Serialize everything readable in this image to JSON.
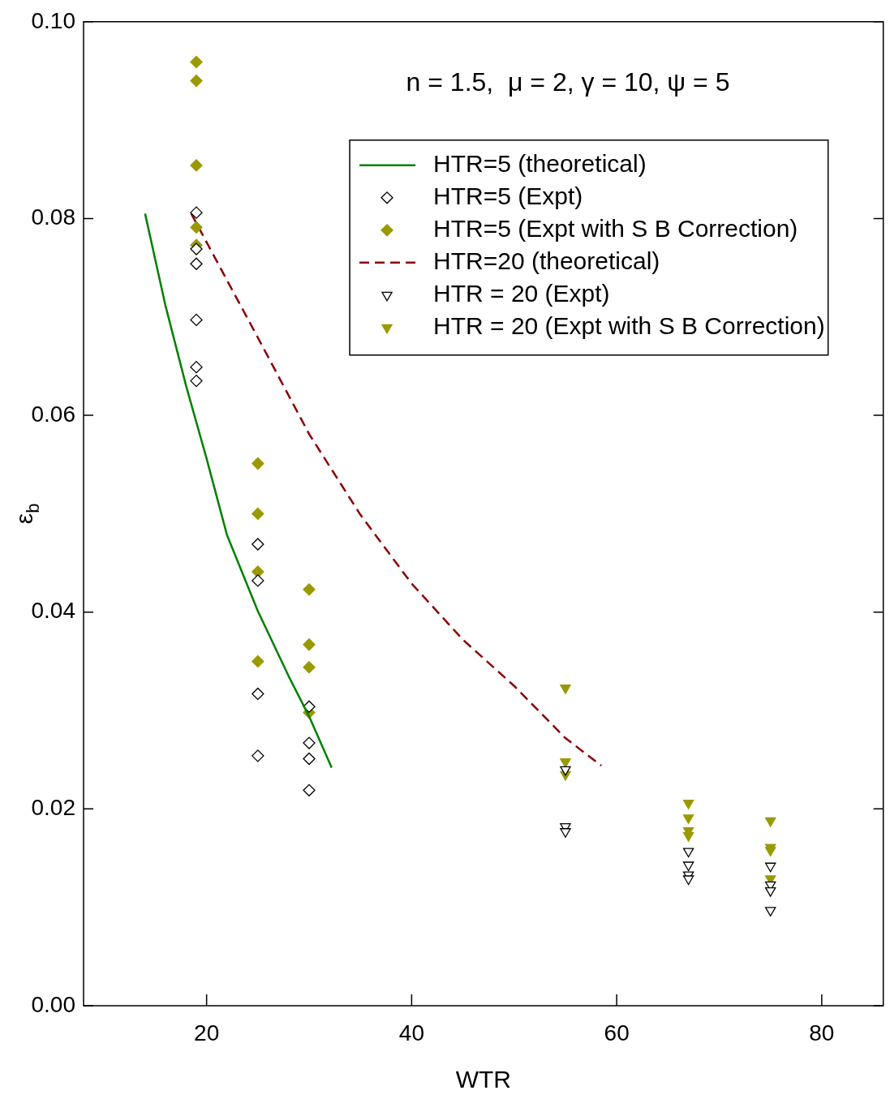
{
  "chart_data": {
    "type": "scatter",
    "xlabel": "WTR",
    "ylabel": "ε$_{b}$",
    "annotations": [
      "n = 1.5,  μ = 2, γ = 10, ψ = 5"
    ],
    "xlim": [
      8,
      86
    ],
    "xticks": [
      20,
      40,
      60,
      80
    ],
    "ylim": [
      0,
      0.1
    ],
    "yticks": [
      {
        "value": 0,
        "label": "0.00"
      },
      {
        "value": 0.02,
        "label": "0.02"
      },
      {
        "value": 0.04,
        "label": "0.04"
      },
      {
        "value": 0.06,
        "label": "0.06"
      },
      {
        "value": 0.08,
        "label": "0.08"
      },
      {
        "value": 0.1,
        "label": "0.10"
      }
    ],
    "grid": false,
    "legend": "top right",
    "series": [
      {
        "name": "HTR=5 (theoretical)",
        "type": "line",
        "color": "#008000",
        "line_style": "solid",
        "marker": "none",
        "x": [
          14,
          16,
          18,
          20,
          22,
          25,
          28,
          30,
          32.2
        ],
        "values": [
          0.0805,
          0.0711,
          0.063,
          0.0556,
          0.0478,
          0.0401,
          0.0335,
          0.0294,
          0.0242
        ]
      },
      {
        "name": "HTR=5 (Expt)",
        "color": "#000000",
        "marker": "diamond",
        "x": [
          19,
          19,
          19,
          19,
          19,
          19,
          25,
          25,
          25,
          25,
          30,
          30,
          30,
          30
        ],
        "values": [
          0.0806,
          0.0769,
          0.0754,
          0.0697,
          0.0649,
          0.0635,
          0.0469,
          0.0432,
          0.0317,
          0.0254,
          0.0304,
          0.0267,
          0.0251,
          0.0219
        ]
      },
      {
        "name": "HTR=5 (Expt with S B Correction)",
        "color": "#999900",
        "marker": "diamond",
        "x": [
          19,
          19,
          19,
          19,
          19,
          25,
          25,
          25,
          25,
          30,
          30,
          30,
          30
        ],
        "values": [
          0.0959,
          0.094,
          0.0854,
          0.0791,
          0.0773,
          0.0551,
          0.05,
          0.0441,
          0.035,
          0.0423,
          0.0367,
          0.0344,
          0.0298
        ]
      },
      {
        "name": "HTR=20 (theoretical)",
        "type": "line",
        "color": "#8b0000",
        "line_style": "dashed",
        "marker": "none",
        "x": [
          18.5,
          25,
          30,
          35,
          40,
          45,
          50,
          55,
          58.5
        ],
        "values": [
          0.0805,
          0.0679,
          0.0581,
          0.0499,
          0.0429,
          0.0372,
          0.0325,
          0.0272,
          0.0244
        ]
      },
      {
        "name": "HTR = 20 (Expt)",
        "color": "#000000",
        "marker": "triangle",
        "x": [
          55,
          55,
          55,
          67,
          67,
          67,
          67,
          75,
          75,
          75,
          75
        ],
        "values": [
          0.024,
          0.0182,
          0.0177,
          0.0157,
          0.0143,
          0.0133,
          0.0129,
          0.0142,
          0.0123,
          0.0117,
          0.0097
        ]
      },
      {
        "name": "HTR = 20 (Expt with S B Correction)",
        "color": "#999900",
        "marker": "triangle",
        "x": [
          55,
          55,
          55,
          67,
          67,
          67,
          67,
          75,
          75,
          75,
          75
        ],
        "values": [
          0.0323,
          0.0248,
          0.0235,
          0.0206,
          0.0191,
          0.0178,
          0.0173,
          0.0188,
          0.0161,
          0.0158,
          0.0129
        ]
      }
    ]
  }
}
